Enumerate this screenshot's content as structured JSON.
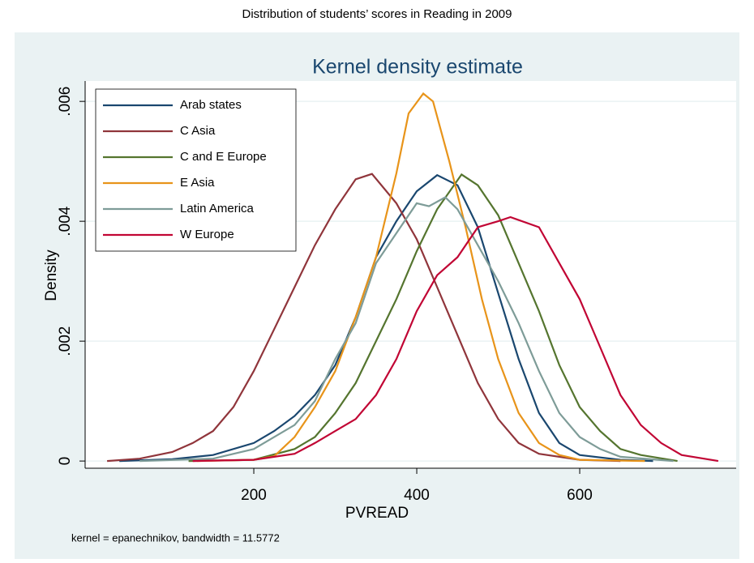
{
  "chart_data": {
    "type": "line",
    "page_title": "Distribution of students’ scores in Reading in 2009",
    "title": "Kernel density estimate",
    "xlabel": "PVREAD",
    "ylabel": "Density",
    "note": "kernel = epanechnikov, bandwidth = 11.5772",
    "xlim": [
      -7,
      792
    ],
    "ylim": [
      -0.00012,
      0.00634
    ],
    "xticks": [
      200,
      400,
      600
    ],
    "yticks": [
      0,
      {
        "value": 0.002,
        "label": ".002"
      },
      {
        "value": 0.004,
        "label": ".004"
      },
      {
        "value": 0.006,
        "label": ".006"
      }
    ],
    "grid": true,
    "legend": "top-left",
    "series": [
      {
        "name": "Arab states",
        "color": "#1a476f",
        "x": [
          35,
          100,
          150,
          200,
          225,
          250,
          275,
          300,
          325,
          350,
          375,
          400,
          425,
          450,
          475,
          500,
          525,
          550,
          575,
          600,
          650,
          690
        ],
        "values": [
          0,
          3e-05,
          0.0001,
          0.0003,
          0.0005,
          0.00075,
          0.0011,
          0.0016,
          0.0024,
          0.0034,
          0.004,
          0.0045,
          0.00477,
          0.0046,
          0.0039,
          0.0028,
          0.0017,
          0.0008,
          0.0003,
          0.0001,
          2e-05,
          0
        ]
      },
      {
        "name": "C Asia",
        "color": "#90353b",
        "x": [
          20,
          60,
          100,
          125,
          150,
          175,
          200,
          225,
          250,
          275,
          300,
          325,
          345,
          375,
          400,
          425,
          450,
          475,
          500,
          525,
          550,
          600,
          650
        ],
        "values": [
          0,
          4e-05,
          0.00015,
          0.0003,
          0.0005,
          0.0009,
          0.0015,
          0.0022,
          0.0029,
          0.0036,
          0.0042,
          0.0047,
          0.00479,
          0.0043,
          0.0037,
          0.0029,
          0.0021,
          0.0013,
          0.0007,
          0.0003,
          0.00012,
          2e-05,
          0
        ]
      },
      {
        "name": "C and E Europe",
        "color": "#55752f",
        "x": [
          120,
          200,
          250,
          275,
          300,
          325,
          350,
          375,
          400,
          425,
          455,
          475,
          500,
          525,
          550,
          575,
          600,
          625,
          650,
          675,
          720
        ],
        "values": [
          0,
          2e-05,
          0.0002,
          0.0004,
          0.0008,
          0.0013,
          0.002,
          0.0027,
          0.0035,
          0.0042,
          0.00478,
          0.0046,
          0.0041,
          0.0033,
          0.0025,
          0.0016,
          0.0009,
          0.0005,
          0.0002,
          0.0001,
          0
        ]
      },
      {
        "name": "E Asia",
        "color": "#e8941a",
        "x": [
          130,
          200,
          225,
          250,
          275,
          300,
          325,
          350,
          375,
          390,
          408,
          420,
          440,
          460,
          480,
          500,
          525,
          550,
          575,
          600,
          680
        ],
        "values": [
          0,
          2e-05,
          8e-05,
          0.0004,
          0.0009,
          0.0015,
          0.0024,
          0.0034,
          0.0048,
          0.0058,
          0.00613,
          0.006,
          0.005,
          0.0039,
          0.0027,
          0.0017,
          0.0008,
          0.0003,
          0.0001,
          2e-05,
          0
        ]
      },
      {
        "name": "Latin America",
        "color": "#7e9c98",
        "x": [
          60,
          150,
          200,
          250,
          275,
          300,
          325,
          350,
          375,
          400,
          415,
          435,
          450,
          475,
          500,
          525,
          550,
          575,
          600,
          625,
          650,
          715
        ],
        "values": [
          0,
          4e-05,
          0.0002,
          0.0006,
          0.001,
          0.0017,
          0.0023,
          0.0033,
          0.0038,
          0.0043,
          0.00425,
          0.0044,
          0.0042,
          0.0036,
          0.003,
          0.0023,
          0.0015,
          0.0008,
          0.0004,
          0.0002,
          7e-05,
          0
        ]
      },
      {
        "name": "W Europe",
        "color": "#c10534",
        "x": [
          125,
          200,
          250,
          275,
          300,
          325,
          350,
          375,
          400,
          425,
          450,
          475,
          500,
          515,
          550,
          575,
          600,
          625,
          650,
          675,
          700,
          725,
          770
        ],
        "values": [
          0,
          2e-05,
          0.00012,
          0.0003,
          0.0005,
          0.0007,
          0.0011,
          0.0017,
          0.0025,
          0.0031,
          0.0034,
          0.0039,
          0.004,
          0.00407,
          0.0039,
          0.0033,
          0.0027,
          0.0019,
          0.0011,
          0.0006,
          0.0003,
          0.0001,
          0
        ]
      }
    ]
  }
}
